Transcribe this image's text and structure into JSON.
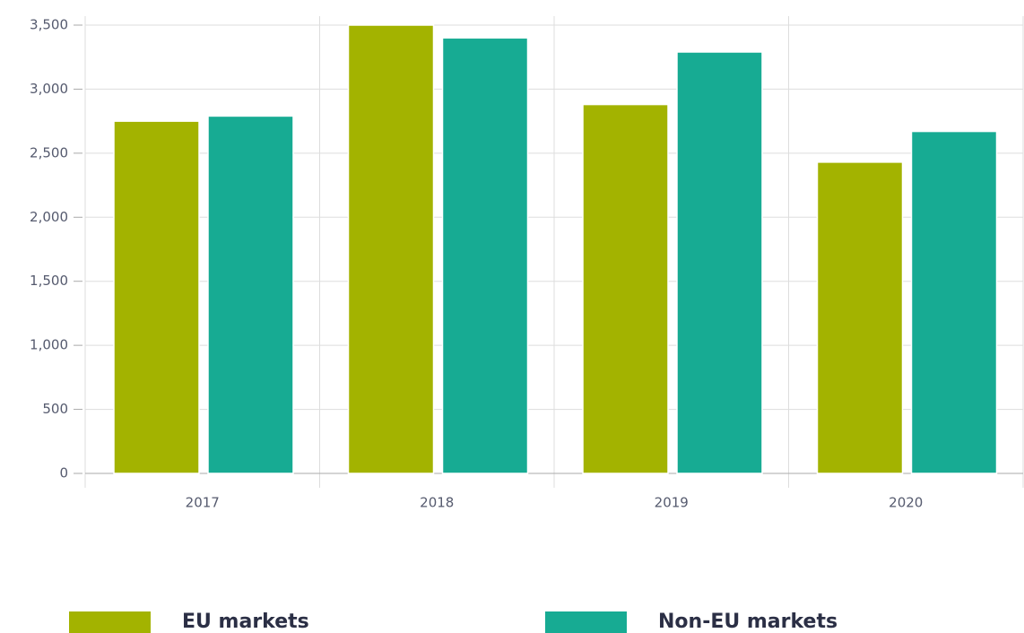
{
  "chart_data": {
    "type": "bar",
    "categories": [
      "2017",
      "2018",
      "2019",
      "2020"
    ],
    "series": [
      {
        "name": "EU markets",
        "color": "#a3b300",
        "values": [
          2750,
          3500,
          2880,
          2430
        ]
      },
      {
        "name": "Non-EU markets",
        "color": "#17ab93",
        "values": [
          2790,
          3400,
          3290,
          2670
        ]
      }
    ],
    "ylim": [
      0,
      3500
    ],
    "yticks": [
      0,
      500,
      {
        "value": 1000,
        "label": "1,000"
      },
      {
        "value": 1500,
        "label": "1,500"
      },
      {
        "value": 2000,
        "label": "2,000"
      },
      {
        "value": 2500,
        "label": "2,500"
      },
      {
        "value": 3000,
        "label": "3,000"
      },
      {
        "value": 3500,
        "label": "3,500"
      }
    ],
    "grid": true,
    "legend": "bottom"
  }
}
